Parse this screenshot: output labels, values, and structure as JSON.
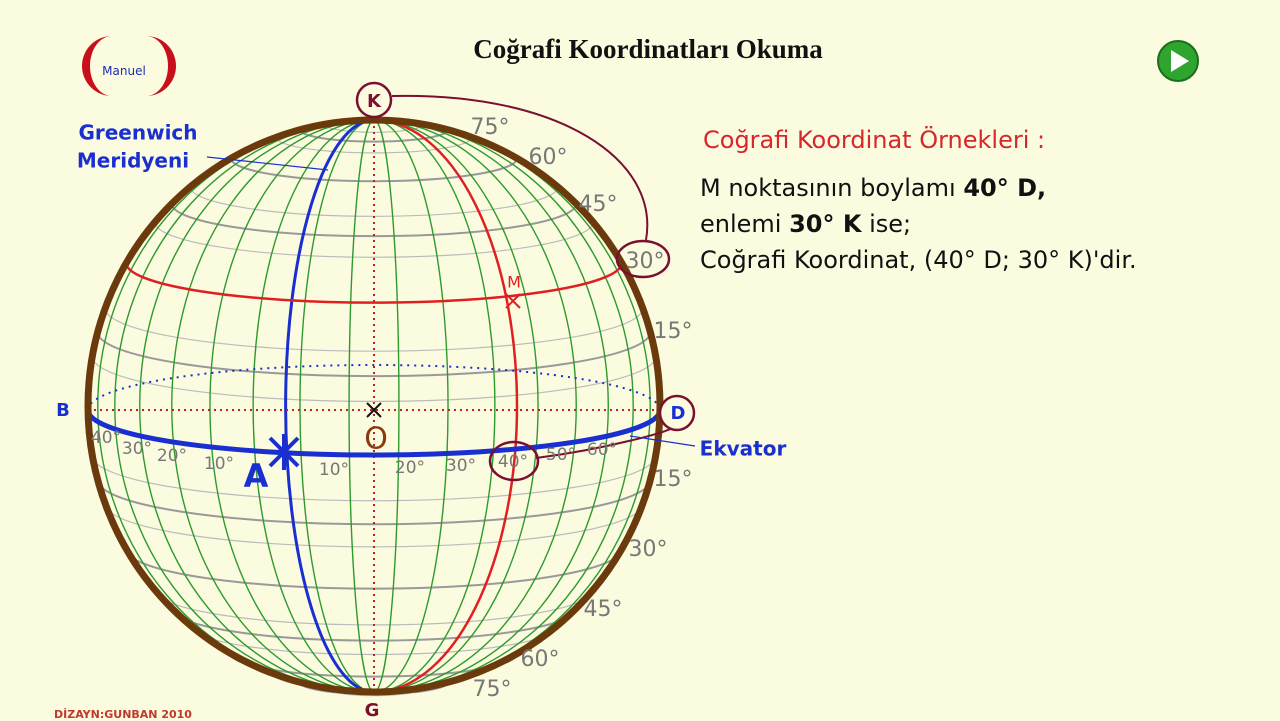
{
  "header": {
    "title": "Coğrafi Koordinatları Okuma",
    "manual_button": "Manuel"
  },
  "globe": {
    "pole_north": "K",
    "pole_south": "G",
    "west": "B",
    "east": "D",
    "center": "O",
    "point_a": "A",
    "point_m": "M",
    "greenwich_label": [
      "Greenwich",
      "Meridyeni"
    ],
    "equator_label": "Ekvator",
    "north_latitudes": [
      "75°",
      "60°",
      "45°",
      "30°",
      "15°"
    ],
    "south_latitudes": [
      "15°",
      "30°",
      "45°",
      "60°",
      "75°"
    ],
    "west_longitudes": [
      "40°",
      "30°",
      "20°",
      "10°"
    ],
    "east_longitudes": [
      "10°",
      "20°",
      "30°",
      "40°",
      "50°",
      "60°"
    ]
  },
  "panel": {
    "heading": "Coğrafi Koordinat Örnekleri :",
    "line1": [
      "M noktasının boylamı ",
      "40° D,"
    ],
    "line2": [
      "enlemi ",
      "30° K",
      " ise;"
    ],
    "line3": "Coğrafi Koordinat, (40° D; 30° K)'dir."
  },
  "footer": "DİZAYN:GUNBAN 2010"
}
